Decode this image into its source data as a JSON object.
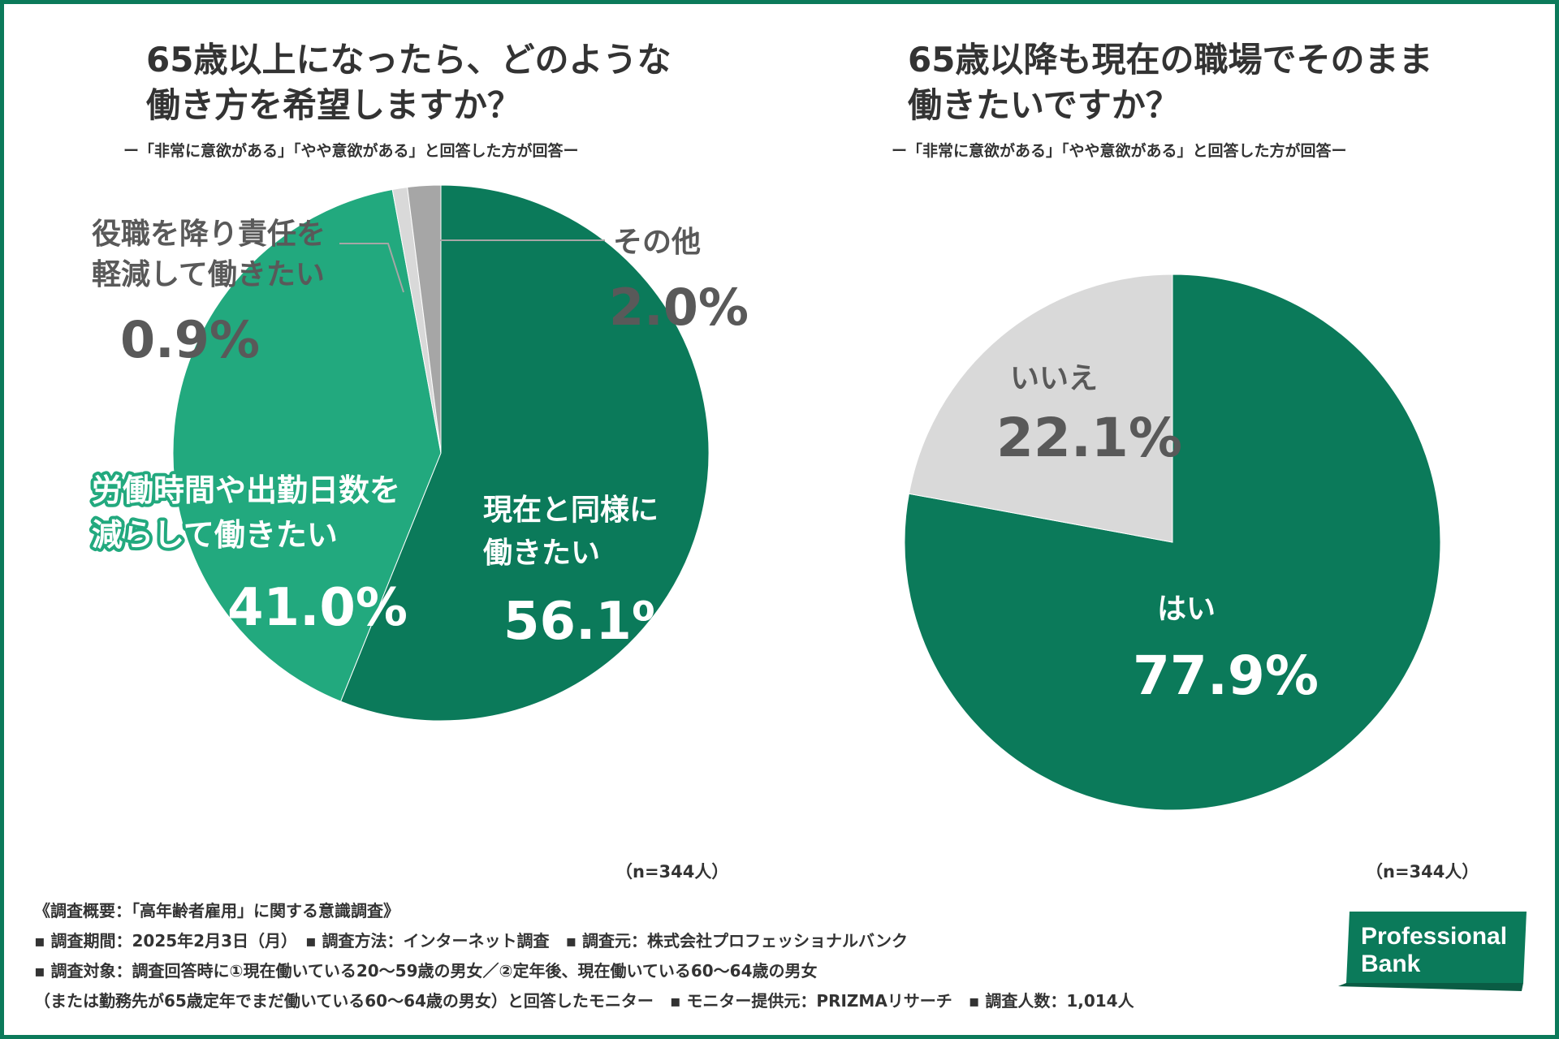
{
  "colors": {
    "frame": "#0b7a5a",
    "primary": "#0b7a5a",
    "secondary": "#22a97e",
    "light_gray": "#d9d9d9",
    "mid_gray": "#a6a6a6",
    "text_dark": "#333333",
    "text_gray": "#595959"
  },
  "left": {
    "title_line1": "65歳以上になったら、どのような",
    "title_line2": "働き方を希望しますか？",
    "subtitle": "ー「非常に意欲がある」「やや意欲がある」と回答した方が回答ー",
    "n": "（n=344人）"
  },
  "right": {
    "title_line1": "65歳以降も現在の職場でそのまま",
    "title_line2": "働きたいですか？",
    "subtitle": "ー「非常に意欲がある」「やや意欲がある」と回答した方が回答ー",
    "n": "（n=344人）"
  },
  "chart_data": [
    {
      "type": "pie",
      "title": "65歳以上になったら、どのような働き方を希望しますか？",
      "slices": [
        {
          "label_lines": [
            "現在と同様に",
            "働きたい"
          ],
          "value": 56.1,
          "value_label": "56.1%",
          "color": "#0b7a5a"
        },
        {
          "label_lines": [
            "労働時間や出勤日数を",
            "減らして働きたい"
          ],
          "value": 41.0,
          "value_label": "41.0%",
          "color": "#22a97e"
        },
        {
          "label_lines": [
            "役職を降り責任を",
            "軽減して働きたい"
          ],
          "value": 0.9,
          "value_label": "0.9%",
          "color": "#d9d9d9"
        },
        {
          "label_lines": [
            "その他"
          ],
          "value": 2.0,
          "value_label": "2.0%",
          "color": "#a6a6a6"
        }
      ]
    },
    {
      "type": "pie",
      "title": "65歳以降も現在の職場でそのまま働きたいですか？",
      "slices": [
        {
          "label_lines": [
            "はい"
          ],
          "value": 77.9,
          "value_label": "77.9%",
          "color": "#0b7a5a"
        },
        {
          "label_lines": [
            "いいえ"
          ],
          "value": 22.1,
          "value_label": "22.1%",
          "color": "#d9d9d9"
        }
      ]
    }
  ],
  "footer": {
    "heading": "《調査概要：「高年齢者雇用」に関する意識調査》",
    "line1": "▪ 調査期間：2025年2月3日（月）　▪ 調査方法：インターネット調査　▪ 調査元：株式会社プロフェッショナルバンク",
    "line2": "▪ 調査対象：調査回答時に①現在働いている20〜59歳の男女／②定年後、現在働いている60〜64歳の男女",
    "line3": "（または勤務先が65歳定年でまだ働いている60〜64歳の男女）と回答したモニター　▪ モニター提供元：PRIZMAリサーチ　▪ 調査人数：1,014人"
  },
  "logo": {
    "line1": "Professional",
    "line2": "Bank"
  }
}
